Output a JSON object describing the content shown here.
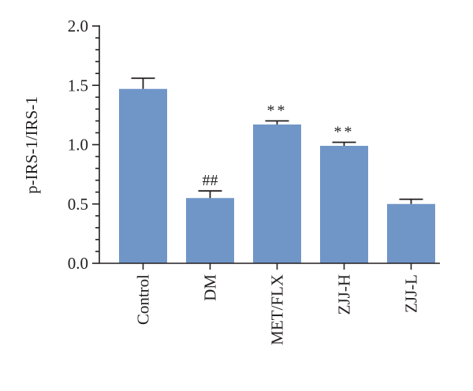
{
  "chart_data": {
    "type": "bar",
    "categories": [
      "Control",
      "DM",
      "MET/FLX",
      "ZJJ-H",
      "ZJJ-L"
    ],
    "values": [
      1.47,
      0.55,
      1.17,
      0.99,
      0.5
    ],
    "errors": [
      0.09,
      0.06,
      0.03,
      0.03,
      0.04
    ],
    "significance": [
      "",
      "##",
      "**",
      "**",
      ""
    ],
    "ylabel": "p-IRS-1/IRS-1",
    "xlabel": "",
    "ylim": [
      0,
      2.0
    ],
    "yticks": [
      "0.0",
      "0.5",
      "1.0",
      "1.5",
      "2.0"
    ],
    "ytick_values": [
      0,
      0.5,
      1.0,
      1.5,
      2.0
    ],
    "minor_tick_step": 0.1,
    "bar_color": "#7096c8",
    "axis_color": "#231f20",
    "grid": false,
    "legend": "none"
  }
}
